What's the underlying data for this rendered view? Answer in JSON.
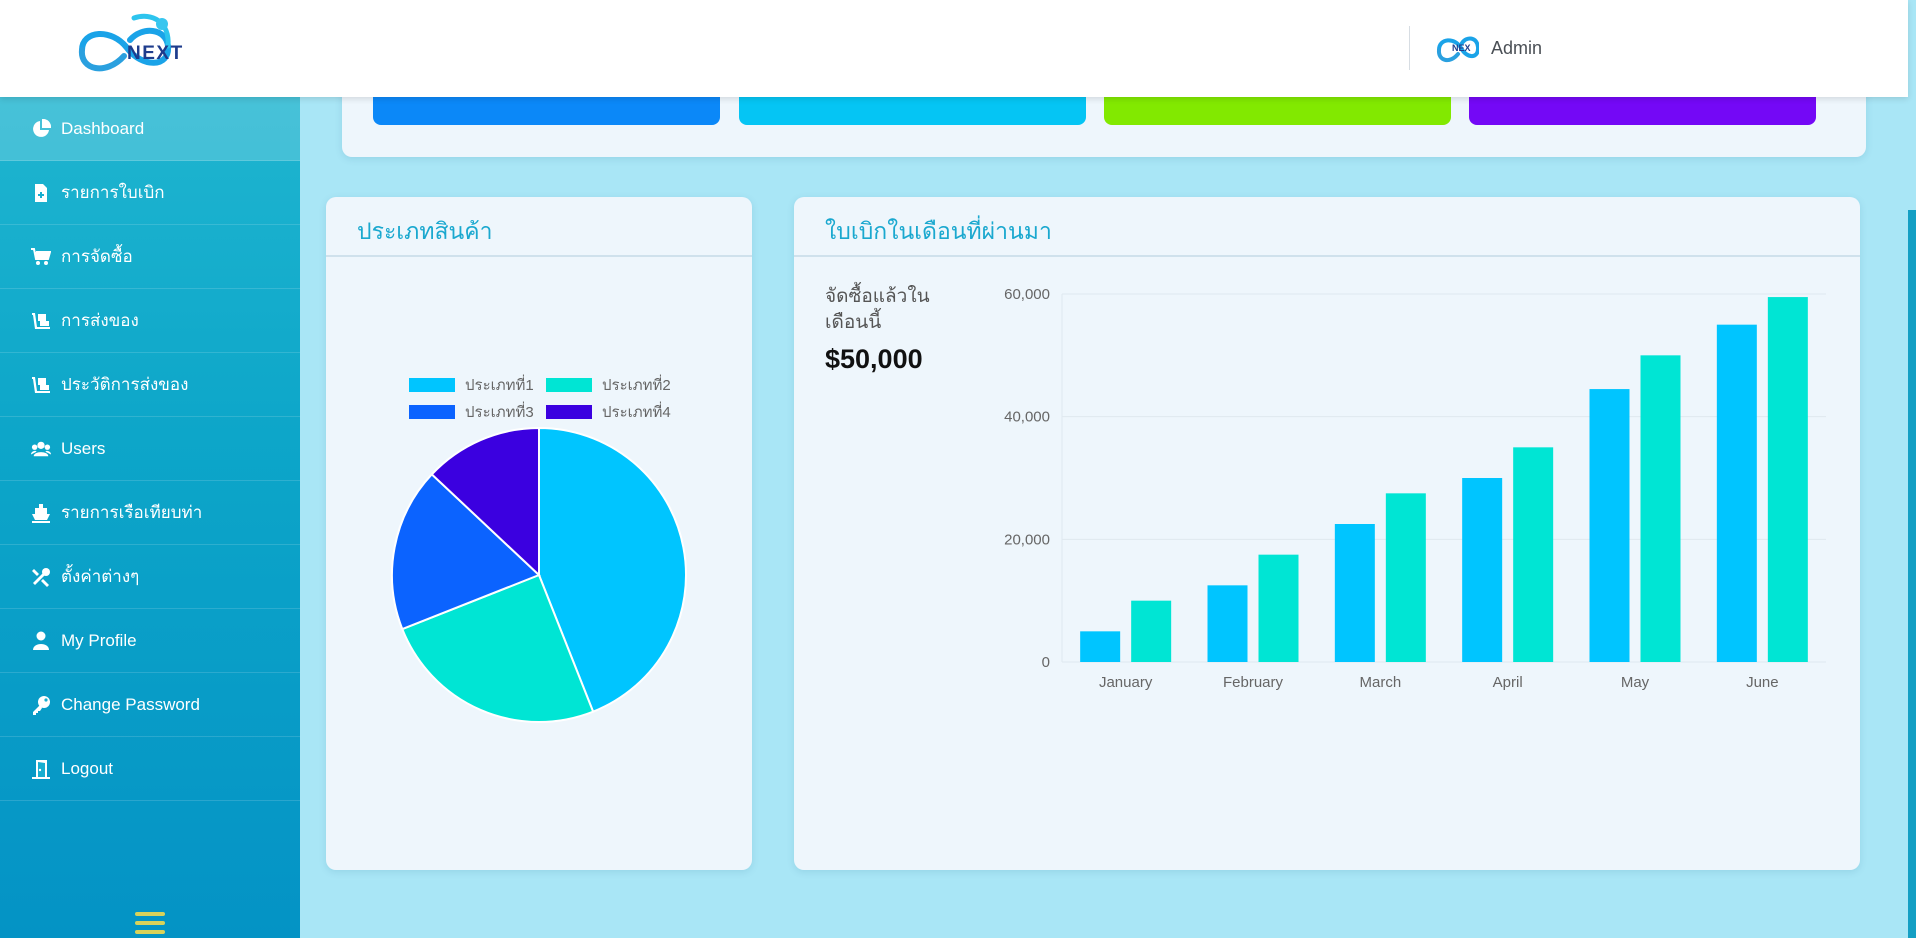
{
  "header": {
    "logo_text": "NEXT",
    "admin_avatar_text": "NEX",
    "user_name": "Admin"
  },
  "sidebar": {
    "items": [
      {
        "label": "Dashboard",
        "icon": "pie-chart-icon",
        "active": true
      },
      {
        "label": "รายการใบเบิก",
        "icon": "file-plus-icon"
      },
      {
        "label": "การจัดซื้อ",
        "icon": "cart-icon"
      },
      {
        "label": "การส่งของ",
        "icon": "dolly-icon"
      },
      {
        "label": "ประวัติการส่งของ",
        "icon": "dolly-icon"
      },
      {
        "label": "Users",
        "icon": "users-icon"
      },
      {
        "label": "รายการเรือเทียบท่า",
        "icon": "ship-icon"
      },
      {
        "label": "ตั้งค่าต่างๆ",
        "icon": "tools-icon"
      },
      {
        "label": "My Profile",
        "icon": "user-icon"
      },
      {
        "label": "Change Password",
        "icon": "key-icon"
      },
      {
        "label": "Logout",
        "icon": "door-icon"
      }
    ],
    "menu_toggle_icon": "hamburger-icon"
  },
  "stat_cards": {
    "colors": [
      "#0b88f8",
      "#05c5f4",
      "#82e900",
      "#7408f6"
    ]
  },
  "category_panel": {
    "title": "ประเภทสินค้า"
  },
  "requisition_panel": {
    "title": "ใบเบิกในเดือนที่ผ่านมา",
    "purchase_label": "จัดซื้อแล้วในเดือนนี้",
    "purchase_value": "$50,000"
  },
  "chart_data": [
    {
      "type": "pie",
      "labels": [
        "ประเภทที่1",
        "ประเภทที่2",
        "ประเภทที่3",
        "ประเภทที่4"
      ],
      "values": [
        44,
        25,
        18,
        13
      ],
      "colors": [
        "#00c5ff",
        "#00e5d4",
        "#0b63ff",
        "#3b00e0"
      ],
      "legend": "top"
    },
    {
      "type": "bar",
      "categories": [
        "January",
        "February",
        "March",
        "April",
        "May",
        "June"
      ],
      "series": [
        {
          "values": [
            5000,
            12500,
            22500,
            30000,
            44500,
            55000
          ],
          "color": "#00c5ff"
        },
        {
          "values": [
            10000,
            17500,
            27500,
            35000,
            50000,
            59500
          ],
          "color": "#00e5d4"
        }
      ],
      "yticks": [
        "0",
        "20,000",
        "40,000",
        "60,000"
      ],
      "ylim": [
        0,
        60000
      ],
      "grid": true
    }
  ]
}
